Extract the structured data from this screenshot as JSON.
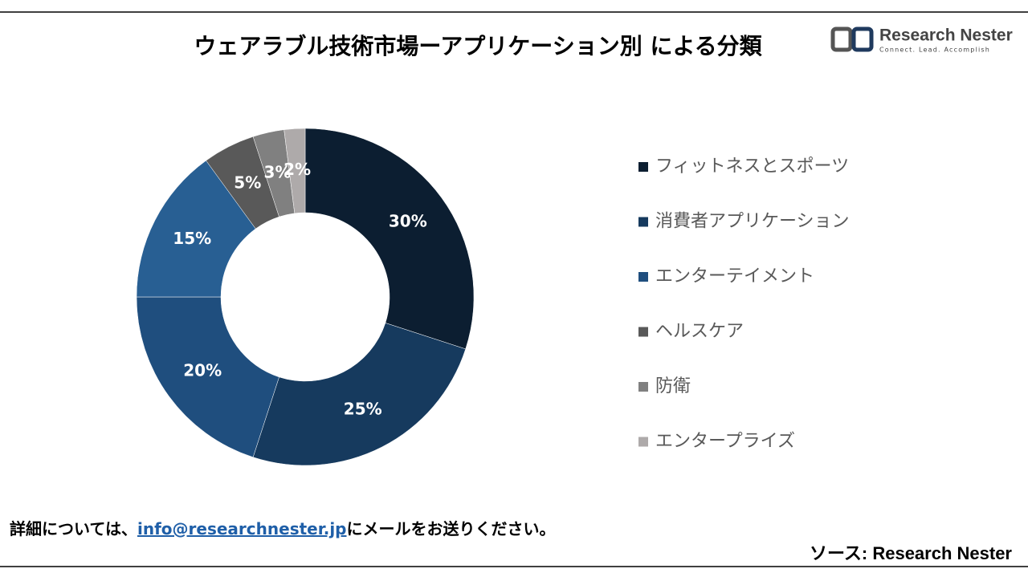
{
  "chart_data": {
    "type": "donut",
    "title": "ウェアラブル技術市場ーアプリケーション別 による分類",
    "categories": [
      "フィットネスとスポーツ",
      "消費者アプリケーション",
      "エンターテイメント",
      null,
      "ヘルスケア",
      "防衛",
      "エンタープライズ"
    ],
    "values": [
      30,
      25,
      20,
      15,
      5,
      3,
      2
    ],
    "value_labels": [
      "30%",
      "25%",
      "20%",
      "15%",
      "5%",
      "3%",
      "2%"
    ],
    "colors": [
      "#0c1e31",
      "#163a5e",
      "#1f4e7e",
      "#285f93",
      "#595959",
      "#808080",
      "#aeaaaa"
    ],
    "legend": "right"
  },
  "logo": {
    "name": "Research Nester",
    "tagline": "Connect. Lead. Accomplish"
  },
  "footer": {
    "note_before": "詳細については、",
    "email": "info@researchnester.jp",
    "note_after": "にメールをお送りください。",
    "source": "ソース: Research Nester"
  }
}
